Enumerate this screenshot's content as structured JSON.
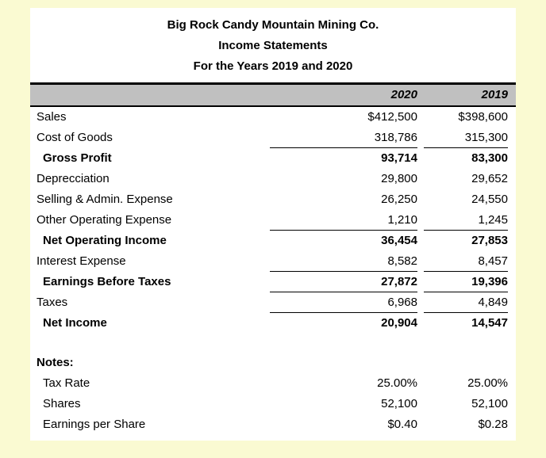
{
  "colors": {
    "page_bg": "#FAFAD2",
    "sheet_bg": "#FFFFFF",
    "header_band_bg": "#C0C0C0",
    "rule_color": "#000000"
  },
  "titles": {
    "company": "Big Rock Candy Mountain Mining Co.",
    "statement": "Income Statements",
    "period": "For the Years 2019 and 2020"
  },
  "column_headers": {
    "y2020": "2020",
    "y2019": "2019"
  },
  "rows": [
    {
      "label": "Sales",
      "v2020": "$412,500",
      "v2019": "$398,600"
    },
    {
      "label": "Cost of Goods",
      "v2020": "318,786",
      "v2019": "315,300"
    },
    {
      "label": "Gross Profit",
      "v2020": "93,714",
      "v2019": "83,300"
    },
    {
      "label": "Deprecciation",
      "v2020": "29,800",
      "v2019": "29,652"
    },
    {
      "label": "Selling & Admin. Expense",
      "v2020": "26,250",
      "v2019": "24,550"
    },
    {
      "label": "Other Operating Expense",
      "v2020": "1,210",
      "v2019": "1,245"
    },
    {
      "label": "Net Operating Income",
      "v2020": "36,454",
      "v2019": "27,853"
    },
    {
      "label": "Interest Expense",
      "v2020": "8,582",
      "v2019": "8,457"
    },
    {
      "label": "Earnings Before Taxes",
      "v2020": "27,872",
      "v2019": "19,396"
    },
    {
      "label": "Taxes",
      "v2020": "6,968",
      "v2019": "4,849"
    },
    {
      "label": "Net Income",
      "v2020": "20,904",
      "v2019": "14,547"
    }
  ],
  "notes": {
    "heading": "Notes:",
    "rows": [
      {
        "label": "Tax Rate",
        "v2020": "25.00%",
        "v2019": "25.00%"
      },
      {
        "label": "Shares",
        "v2020": "52,100",
        "v2019": "52,100"
      },
      {
        "label": "Earnings per Share",
        "v2020": "$0.40",
        "v2019": "$0.28"
      }
    ]
  }
}
